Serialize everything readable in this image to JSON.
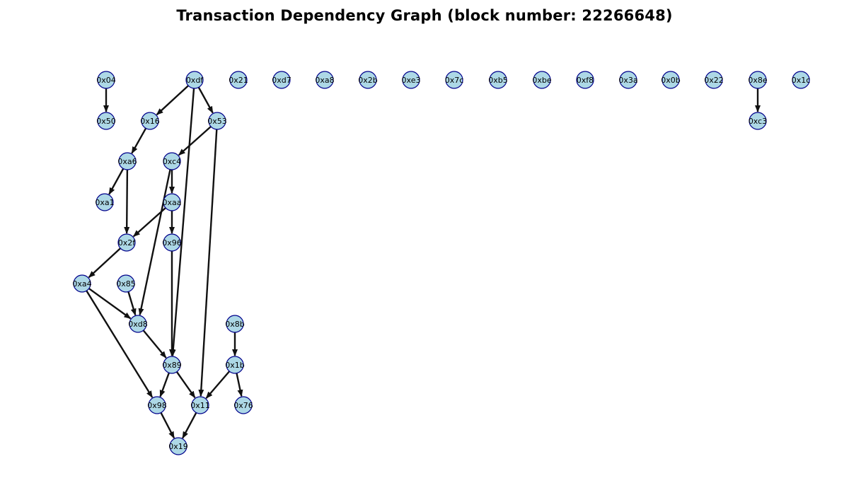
{
  "title": "Transaction Dependency Graph (block number: 22266648)",
  "colors": {
    "node_fill": "#add8e6",
    "node_stroke": "#00008b",
    "edge": "#111111",
    "label": "#000000"
  },
  "nodes": [
    {
      "id": "0x04",
      "label": "0x04"
    },
    {
      "id": "0x50",
      "label": "0x50"
    },
    {
      "id": "0xdf",
      "label": "0xdf"
    },
    {
      "id": "0x16",
      "label": "0x16"
    },
    {
      "id": "0x53",
      "label": "0x53"
    },
    {
      "id": "0xa6",
      "label": "0xa6"
    },
    {
      "id": "0xc4",
      "label": "0xc4"
    },
    {
      "id": "0xa1",
      "label": "0xa1"
    },
    {
      "id": "0xaa",
      "label": "0xaa"
    },
    {
      "id": "0x2f",
      "label": "0x2f"
    },
    {
      "id": "0x96",
      "label": "0x96"
    },
    {
      "id": "0xa4",
      "label": "0xa4"
    },
    {
      "id": "0x85",
      "label": "0x85"
    },
    {
      "id": "0xd8",
      "label": "0xd8"
    },
    {
      "id": "0x8b",
      "label": "0x8b"
    },
    {
      "id": "0x89",
      "label": "0x89"
    },
    {
      "id": "0x1b",
      "label": "0x1b"
    },
    {
      "id": "0x98",
      "label": "0x98"
    },
    {
      "id": "0x11",
      "label": "0x11"
    },
    {
      "id": "0x76",
      "label": "0x76"
    },
    {
      "id": "0x19",
      "label": "0x19"
    },
    {
      "id": "0x21",
      "label": "0x21"
    },
    {
      "id": "0xd7",
      "label": "0xd7"
    },
    {
      "id": "0xa8",
      "label": "0xa8"
    },
    {
      "id": "0x2b",
      "label": "0x2b"
    },
    {
      "id": "0xe3",
      "label": "0xe3"
    },
    {
      "id": "0x7c",
      "label": "0x7c"
    },
    {
      "id": "0xb5",
      "label": "0xb5"
    },
    {
      "id": "0xbe",
      "label": "0xbe"
    },
    {
      "id": "0xf8",
      "label": "0xf8"
    },
    {
      "id": "0x3a",
      "label": "0x3a"
    },
    {
      "id": "0x0b",
      "label": "0x0b"
    },
    {
      "id": "0x22",
      "label": "0x22"
    },
    {
      "id": "0x8e",
      "label": "0x8e"
    },
    {
      "id": "0xc3",
      "label": "0xc3"
    },
    {
      "id": "0x1c",
      "label": "0x1c"
    }
  ],
  "edges": [
    {
      "from": "0x04",
      "to": "0x50"
    },
    {
      "from": "0xdf",
      "to": "0x16"
    },
    {
      "from": "0xdf",
      "to": "0x53"
    },
    {
      "from": "0xdf",
      "to": "0x89"
    },
    {
      "from": "0x16",
      "to": "0xa6"
    },
    {
      "from": "0x53",
      "to": "0xc4"
    },
    {
      "from": "0x53",
      "to": "0x11"
    },
    {
      "from": "0xa6",
      "to": "0xa1"
    },
    {
      "from": "0xa6",
      "to": "0x2f"
    },
    {
      "from": "0xc4",
      "to": "0xaa"
    },
    {
      "from": "0xc4",
      "to": "0xd8"
    },
    {
      "from": "0xaa",
      "to": "0x2f"
    },
    {
      "from": "0xaa",
      "to": "0x96"
    },
    {
      "from": "0x2f",
      "to": "0xa4"
    },
    {
      "from": "0x96",
      "to": "0x89"
    },
    {
      "from": "0xa4",
      "to": "0xd8"
    },
    {
      "from": "0xa4",
      "to": "0x98"
    },
    {
      "from": "0x85",
      "to": "0xd8"
    },
    {
      "from": "0xd8",
      "to": "0x89"
    },
    {
      "from": "0x89",
      "to": "0x98"
    },
    {
      "from": "0x89",
      "to": "0x11"
    },
    {
      "from": "0x8b",
      "to": "0x1b"
    },
    {
      "from": "0x1b",
      "to": "0x11"
    },
    {
      "from": "0x1b",
      "to": "0x76"
    },
    {
      "from": "0x98",
      "to": "0x19"
    },
    {
      "from": "0x11",
      "to": "0x19"
    },
    {
      "from": "0x8e",
      "to": "0xc3"
    }
  ]
}
